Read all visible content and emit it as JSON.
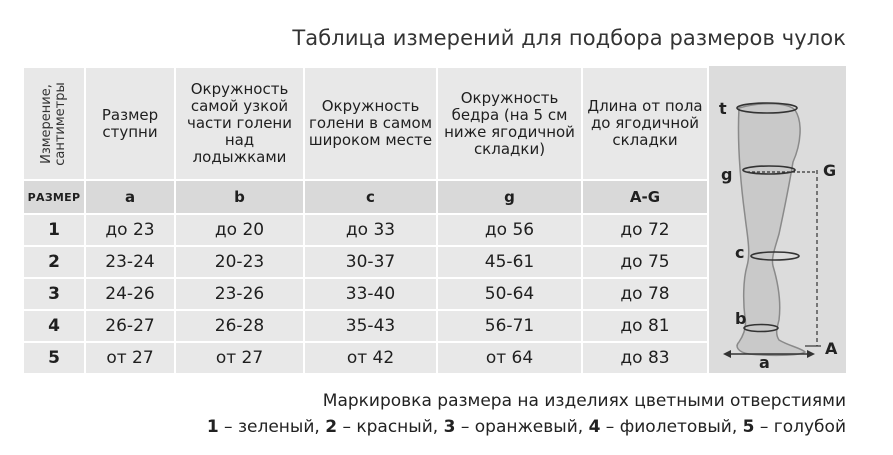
{
  "title": "Таблица измерений для подбора размеров чулок",
  "table": {
    "corner_label": "Измерение, сантиметры",
    "headers": [
      "Размер ступни",
      "Окружность самой узкой части голени над лодыжками",
      "Окружность голени в самом широком месте",
      "Окружность бедра (на 5 см ниже ягодичной складки)",
      "Длина от пола до ягодичной складки"
    ],
    "size_label": "РАЗМЕР",
    "codes": [
      "a",
      "b",
      "c",
      "g",
      "A-G"
    ],
    "rows": [
      {
        "size": "1",
        "values": [
          "до 23",
          "до 20",
          "до 33",
          "до 56",
          "до 72"
        ]
      },
      {
        "size": "2",
        "values": [
          "23-24",
          "20-23",
          "30-37",
          "45-61",
          "до 75"
        ]
      },
      {
        "size": "3",
        "values": [
          "24-26",
          "23-26",
          "33-40",
          "50-64",
          "до 78"
        ]
      },
      {
        "size": "4",
        "values": [
          "26-27",
          "26-28",
          "35-43",
          "56-71",
          "до 81"
        ]
      },
      {
        "size": "5",
        "values": [
          "от 27",
          "от 27",
          "от 42",
          "от 64",
          "до 83"
        ]
      }
    ]
  },
  "diagram": {
    "labels": {
      "t": "t",
      "g": "g",
      "G": "G",
      "c": "c",
      "b": "b",
      "a": "a",
      "A": "A"
    }
  },
  "footer": {
    "line1": "Маркировка размера на изделиях цветными отверстиями",
    "colors": [
      {
        "n": "1",
        "name": "зеленый"
      },
      {
        "n": "2",
        "name": "красный"
      },
      {
        "n": "3",
        "name": "оранжевый"
      },
      {
        "n": "4",
        "name": "фиолетовый"
      },
      {
        "n": "5",
        "name": "голубой"
      }
    ]
  }
}
